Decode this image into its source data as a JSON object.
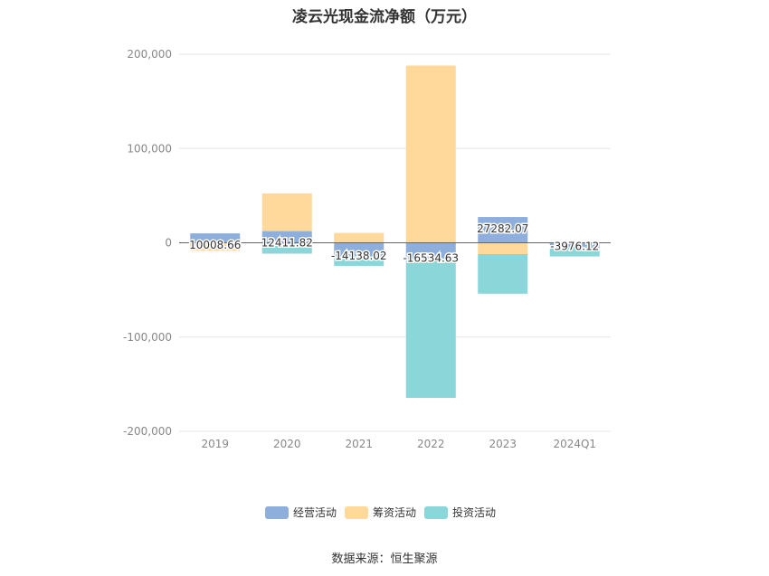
{
  "chart_data": {
    "type": "bar",
    "stacked": true,
    "title": "凌云光现金流净额（万元）",
    "categories": [
      "2019",
      "2020",
      "2021",
      "2022",
      "2023",
      "2024Q1"
    ],
    "series": [
      {
        "name": "经营活动",
        "color": "#8eaedb",
        "values": [
          10008.66,
          12411.82,
          -14138.02,
          -16534.63,
          27282.07,
          -3976.12
        ]
      },
      {
        "name": "筹资活动",
        "color": "#ffd89c",
        "values": [
          -8500,
          40000,
          10500,
          188000,
          -12000,
          0
        ]
      },
      {
        "name": "投资活动",
        "color": "#8ad6d8",
        "values": [
          0,
          -11500,
          -10500,
          -148000,
          -42000,
          -10500
        ]
      }
    ],
    "data_labels": [
      "10008.66",
      "12411.82",
      "-14138.02",
      "-16534.63",
      "27282.07",
      "-3976.12"
    ],
    "ylim": [
      -200000,
      200000
    ],
    "yticks": [
      200000,
      100000,
      0,
      -100000,
      -200000
    ],
    "ytick_labels": [
      "200,000",
      "100,000",
      "0",
      "-100,000",
      "-200,000"
    ],
    "grid": true,
    "legend_position": "bottom"
  },
  "source_note": "数据来源：恒生聚源"
}
